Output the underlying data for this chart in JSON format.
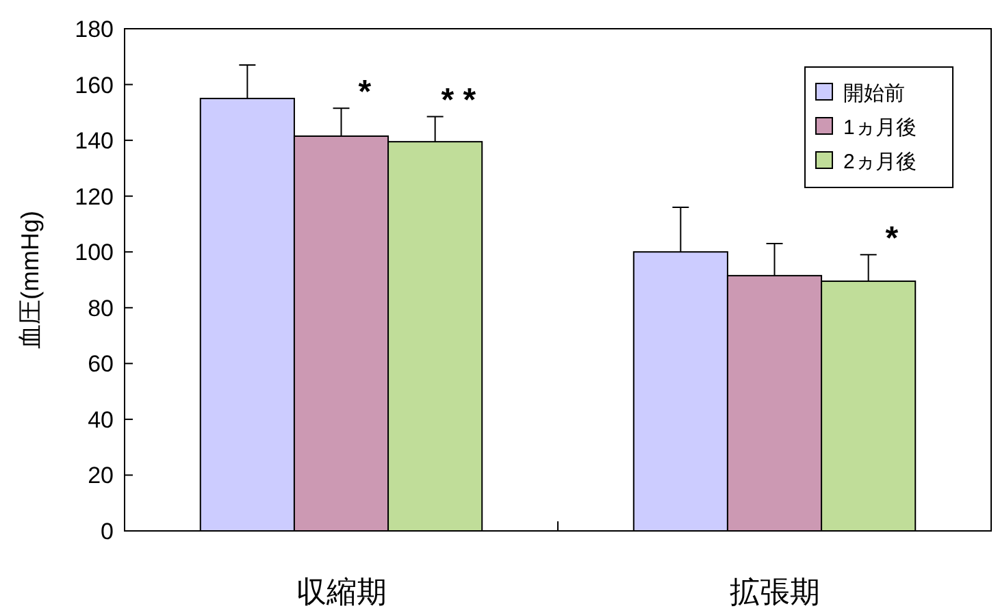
{
  "chart_data": {
    "type": "bar",
    "ylabel": "血圧(mmHg)",
    "categories": [
      "収縮期",
      "拡張期"
    ],
    "series": [
      {
        "name": "開始前",
        "color": "#ccccff",
        "values": [
          155,
          100
        ],
        "errors": [
          [
            155,
            167
          ],
          [
            100,
            116
          ]
        ]
      },
      {
        "name": "1ヵ月後",
        "color": "#cc99b3",
        "values": [
          141.5,
          91.5
        ],
        "errors": [
          [
            141.5,
            151.5
          ],
          [
            91.5,
            103
          ]
        ]
      },
      {
        "name": "2ヵ月後",
        "color": "#c0dd99",
        "values": [
          139.5,
          89.5
        ],
        "errors": [
          [
            139.5,
            148.5
          ],
          [
            89.5,
            99
          ]
        ]
      }
    ],
    "ylim": [
      0,
      180
    ],
    "yticks": [
      0,
      20,
      40,
      60,
      80,
      100,
      120,
      140,
      160,
      180
    ],
    "grid": false,
    "legend": "top right",
    "annotations": [
      "*",
      "* *",
      "*"
    ]
  }
}
